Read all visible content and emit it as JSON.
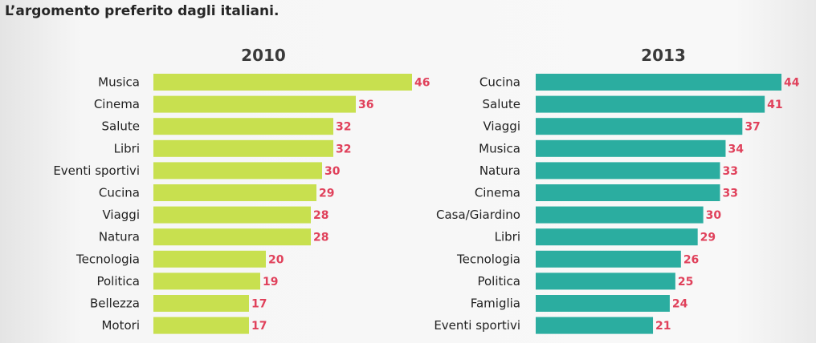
{
  "title": "L’argomento preferito dagli italiani.",
  "chart_data": [
    {
      "type": "bar",
      "orientation": "horizontal",
      "title": "2010",
      "categories": [
        "Musica",
        "Cinema",
        "Salute",
        "Libri",
        "Eventi sportivi",
        "Cucina",
        "Viaggi",
        "Natura",
        "Tecnologia",
        "Politica",
        "Bellezza",
        "Motori"
      ],
      "values": [
        46,
        36,
        32,
        32,
        30,
        29,
        28,
        28,
        20,
        19,
        17,
        17
      ],
      "bar_color": "#c8e04f",
      "label_color": "#e0415b",
      "xlim": [
        0,
        46
      ]
    },
    {
      "type": "bar",
      "orientation": "horizontal",
      "title": "2013",
      "categories": [
        "Cucina",
        "Salute",
        "Viaggi",
        "Musica",
        "Natura",
        "Cinema",
        "Casa/Giardino",
        "Libri",
        "Tecnologia",
        "Politica",
        "Famiglia",
        "Eventi sportivi"
      ],
      "values": [
        44,
        41,
        37,
        34,
        33,
        33,
        30,
        29,
        26,
        25,
        24,
        21
      ],
      "bar_color": "#2bada0",
      "label_color": "#e0415b",
      "xlim": [
        0,
        44
      ]
    }
  ]
}
